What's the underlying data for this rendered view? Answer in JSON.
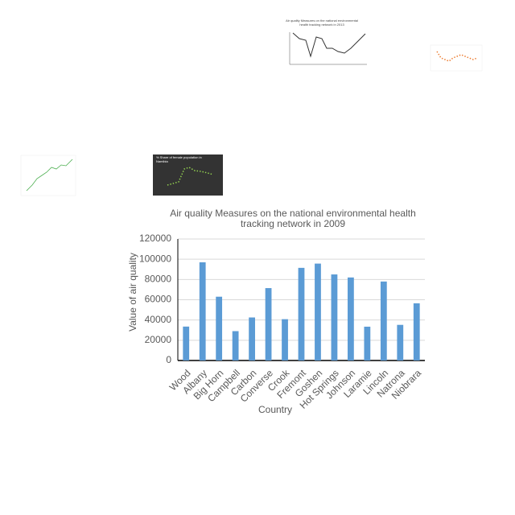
{
  "thumbnails": [
    {
      "title": "Air quality Measures on the national environmental health tracking network in 2013"
    },
    {
      "title": "% Share of female population in Namibia"
    }
  ],
  "chart_data": {
    "type": "bar",
    "title": "Air quality Measures on the national environmental health tracking network in 2009",
    "x_label": "Country",
    "y_label": "Value of air quality",
    "categories": [
      "Wood",
      "Albany",
      "Big Horn",
      "Campbell",
      "Carbon",
      "Converse",
      "Crook",
      "Fremont",
      "Goshen",
      "Hot Springs",
      "Johnson",
      "Laramie",
      "Lincoln",
      "Natrona",
      "Niobrara"
    ],
    "values": [
      33500,
      97000,
      63000,
      29000,
      42500,
      71500,
      40800,
      91500,
      95700,
      85000,
      82000,
      33400,
      78000,
      35200,
      56500
    ],
    "color": "#5b9bd5",
    "ylim": [
      0,
      120000
    ],
    "yticks": [
      0,
      20000,
      40000,
      60000,
      80000,
      100000,
      120000
    ],
    "grid": true
  }
}
